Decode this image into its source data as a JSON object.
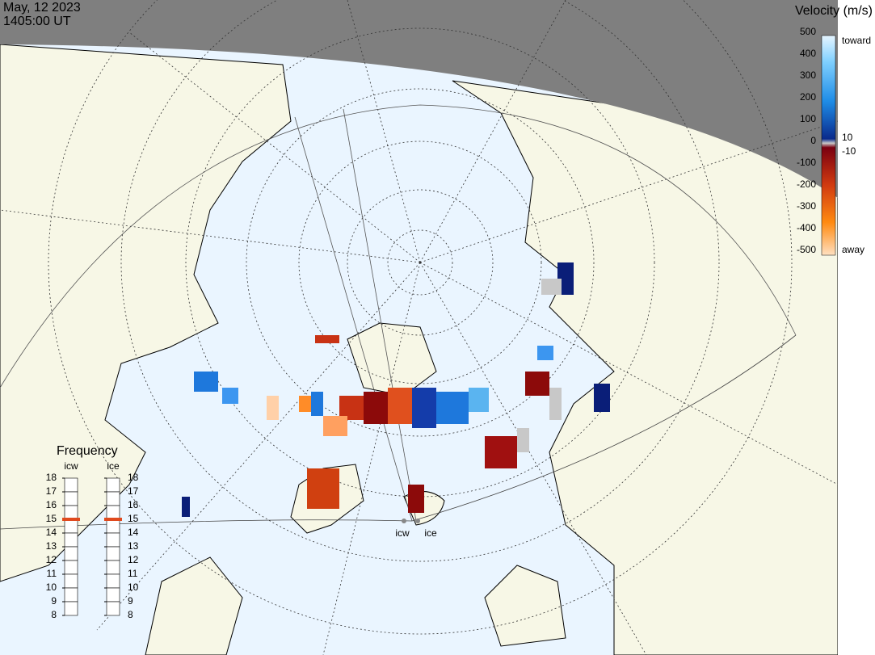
{
  "header": {
    "date": "May, 12 2023",
    "time": "1405:00 UT"
  },
  "colorbar": {
    "title": "Velocity (m/s)",
    "ticks": [
      "500",
      "400",
      "300",
      "200",
      "100",
      "0",
      "-100",
      "-200",
      "-300",
      "-400",
      "-500"
    ],
    "toward": "toward",
    "away": "away",
    "upper_gate": "10",
    "lower_gate": "-10"
  },
  "frequency": {
    "title": "Frequency",
    "radars": [
      {
        "name": "icw",
        "selected": 15
      },
      {
        "name": "ice",
        "selected": 15
      }
    ],
    "ticks": [
      18,
      17,
      16,
      15,
      14,
      13,
      12,
      11,
      10,
      9,
      8
    ]
  },
  "stations": [
    "icw",
    "ice"
  ]
}
